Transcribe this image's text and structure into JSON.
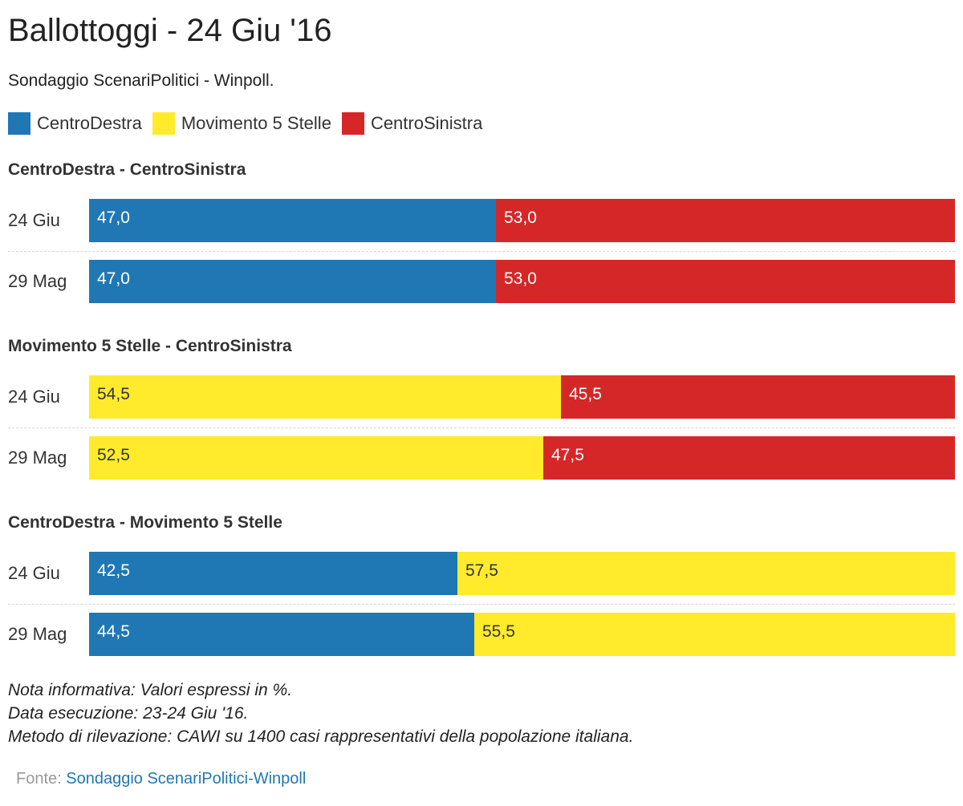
{
  "header": {
    "title": "Ballottoggi - 24 Giu '16",
    "subtitle": "Sondaggio ScenariPolitici - Winpoll."
  },
  "legend": [
    {
      "label": "CentroDestra",
      "color": "#1f78b4"
    },
    {
      "label": "Movimento 5 Stelle",
      "color": "#ffeb2b"
    },
    {
      "label": "CentroSinistra",
      "color": "#d62728"
    }
  ],
  "chart_data": {
    "type": "bar",
    "stacked": true,
    "orientation": "horizontal",
    "value_format": "comma-decimal",
    "panels": [
      {
        "title": "CentroDestra - CentroSinistra",
        "rows": [
          {
            "label": "24 Giu",
            "segments": [
              {
                "series": "CentroDestra",
                "value": 47.0,
                "text": "47,0"
              },
              {
                "series": "CentroSinistra",
                "value": 53.0,
                "text": "53,0"
              }
            ]
          },
          {
            "label": "29 Mag",
            "segments": [
              {
                "series": "CentroDestra",
                "value": 47.0,
                "text": "47,0"
              },
              {
                "series": "CentroSinistra",
                "value": 53.0,
                "text": "53,0"
              }
            ]
          }
        ]
      },
      {
        "title": "Movimento 5 Stelle - CentroSinistra",
        "rows": [
          {
            "label": "24 Giu",
            "segments": [
              {
                "series": "Movimento 5 Stelle",
                "value": 54.5,
                "text": "54,5"
              },
              {
                "series": "CentroSinistra",
                "value": 45.5,
                "text": "45,5"
              }
            ]
          },
          {
            "label": "29 Mag",
            "segments": [
              {
                "series": "Movimento 5 Stelle",
                "value": 52.5,
                "text": "52,5"
              },
              {
                "series": "CentroSinistra",
                "value": 47.5,
                "text": "47,5"
              }
            ]
          }
        ]
      },
      {
        "title": "CentroDestra - Movimento 5 Stelle",
        "rows": [
          {
            "label": "24 Giu",
            "segments": [
              {
                "series": "CentroDestra",
                "value": 42.5,
                "text": "42,5"
              },
              {
                "series": "Movimento 5 Stelle",
                "value": 57.5,
                "text": "57,5"
              }
            ]
          },
          {
            "label": "29 Mag",
            "segments": [
              {
                "series": "CentroDestra",
                "value": 44.5,
                "text": "44,5"
              },
              {
                "series": "Movimento 5 Stelle",
                "value": 55.5,
                "text": "55,5"
              }
            ]
          }
        ]
      }
    ]
  },
  "notes": [
    "Nota informativa: Valori espressi in %.",
    "Data esecuzione: 23-24 Giu '16.",
    "Metodo di rilevazione: CAWI su 1400 casi rappresentativi della popolazione italiana."
  ],
  "source": {
    "prefix": "Fonte:",
    "link_text": "Sondaggio ScenariPolitici-Winpoll"
  }
}
